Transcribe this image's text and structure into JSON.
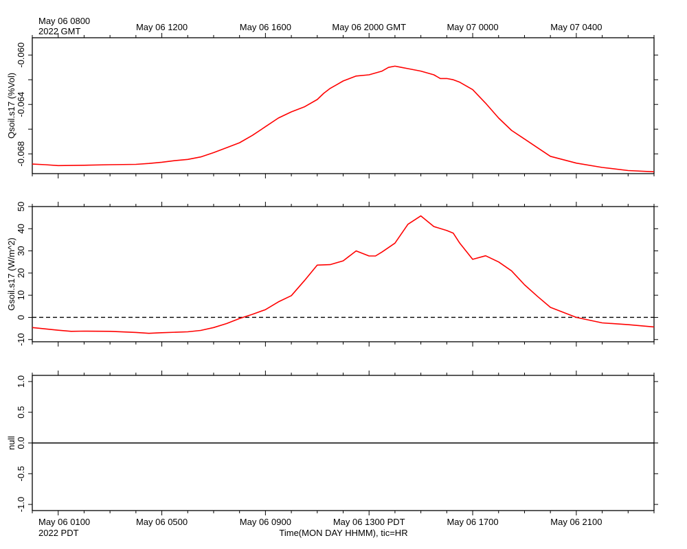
{
  "chart_data": [
    {
      "type": "line",
      "id": "qsoil",
      "ylabel": "Qsoil.s17 (%Vol)",
      "ylim": [
        -0.0696,
        -0.0586
      ],
      "yticks": [
        -0.06,
        -0.062,
        -0.064,
        -0.066,
        -0.068
      ],
      "ytick_labels": [
        "-0.060",
        "-0.064",
        "-0.068"
      ],
      "ytick_label_values": [
        -0.06,
        -0.064,
        -0.068
      ],
      "series": [
        {
          "name": "Qsoil.s17",
          "color": "#ff0000",
          "x": [
            0,
            0.5,
            1,
            2,
            3,
            4,
            4.5,
            5,
            5.5,
            6,
            6.5,
            7,
            7.5,
            8,
            8.5,
            9,
            9.5,
            10,
            10.5,
            11,
            11.25,
            11.5,
            11.75,
            12,
            12.5,
            13,
            13.5,
            13.75,
            14,
            14.25,
            14.5,
            15,
            15.5,
            15.75,
            16,
            16.25,
            16.5,
            17,
            17.5,
            18,
            18.5,
            19,
            19.5,
            20,
            21,
            22,
            23,
            24
          ],
          "y": [
            -0.06883,
            -0.06888,
            -0.06895,
            -0.06892,
            -0.06888,
            -0.06885,
            -0.06878,
            -0.06868,
            -0.06855,
            -0.06845,
            -0.06825,
            -0.0679,
            -0.0675,
            -0.0671,
            -0.0665,
            -0.0658,
            -0.0651,
            -0.0646,
            -0.0642,
            -0.0636,
            -0.0631,
            -0.0627,
            -0.0624,
            -0.0621,
            -0.0617,
            -0.0616,
            -0.0613,
            -0.061,
            -0.0609,
            -0.061,
            -0.0611,
            -0.0613,
            -0.0616,
            -0.0619,
            -0.0619,
            -0.062,
            -0.0622,
            -0.0628,
            -0.0639,
            -0.0651,
            -0.0661,
            -0.0668,
            -0.0675,
            -0.0682,
            -0.06875,
            -0.0691,
            -0.06935,
            -0.06945
          ]
        }
      ]
    },
    {
      "type": "line",
      "id": "gsoil",
      "ylabel": "Gsoil.s17 (W/m^2)",
      "ylim": [
        -11,
        50
      ],
      "yticks": [
        -10,
        0,
        10,
        20,
        30,
        40,
        50
      ],
      "ytick_labels": [
        "-10",
        "0",
        "10",
        "20",
        "30",
        "40",
        "50"
      ],
      "ytick_label_values": [
        -10,
        0,
        10,
        20,
        30,
        40,
        50
      ],
      "reference_line": 0,
      "series": [
        {
          "name": "Gsoil.s17",
          "color": "#ff0000",
          "x": [
            0,
            1,
            1.5,
            2,
            3,
            4,
            4.5,
            5,
            6,
            6.5,
            7,
            7.5,
            8,
            8.5,
            9,
            9.5,
            10,
            10.5,
            11,
            11.5,
            12,
            12.5,
            13,
            13.25,
            13.5,
            14,
            14.5,
            15,
            15.5,
            16,
            16.25,
            16.5,
            17,
            17.5,
            18,
            18.5,
            19,
            19.5,
            20,
            21,
            22,
            23,
            24
          ],
          "y": [
            -4.6,
            -5.8,
            -6.3,
            -6.2,
            -6.3,
            -6.8,
            -7.2,
            -6.9,
            -6.5,
            -5.9,
            -4.6,
            -2.8,
            -0.5,
            1.4,
            3.5,
            7.0,
            9.8,
            16.5,
            23.6,
            23.8,
            25.5,
            30.0,
            27.7,
            27.7,
            29.5,
            33.5,
            42.0,
            45.8,
            41.0,
            39.2,
            38.0,
            33.5,
            26.2,
            27.8,
            25.0,
            21.0,
            14.7,
            9.5,
            4.5,
            0.0,
            -2.5,
            -3.3,
            -4.3
          ]
        }
      ]
    },
    {
      "type": "line",
      "id": "null",
      "ylabel": "null",
      "ylim": [
        -1.1,
        1.1
      ],
      "yticks": [
        -1.0,
        -0.5,
        0.0,
        0.5,
        1.0
      ],
      "ytick_labels": [
        "-1.0",
        "-0.5",
        "0.0",
        "0.5",
        "1.0"
      ],
      "ytick_label_values": [
        -1.0,
        -0.5,
        0.0,
        0.5,
        1.0
      ],
      "series": [
        {
          "name": "null",
          "color": "#000000",
          "x": [
            0,
            24
          ],
          "y": [
            0,
            0
          ]
        }
      ]
    }
  ],
  "time_axis": {
    "xlim": [
      0,
      24
    ],
    "major_ticks": [
      1,
      5,
      9,
      13,
      17,
      21
    ],
    "gmt_labels": [
      "May 06 0800",
      "May 06 1200",
      "May 06 1600",
      "May 06 2000 GMT",
      "May 07 0000",
      "May 07 0400"
    ],
    "gmt_year": "2022 GMT",
    "pdt_labels": [
      "May 06 0100",
      "May 06 0500",
      "May 06 0900",
      "May 06 1300 PDT",
      "May 06 1700",
      "May 06 2100"
    ],
    "pdt_year": "2022 PDT",
    "xlabel": "Time(MON DAY HHMM), tic=HR"
  }
}
